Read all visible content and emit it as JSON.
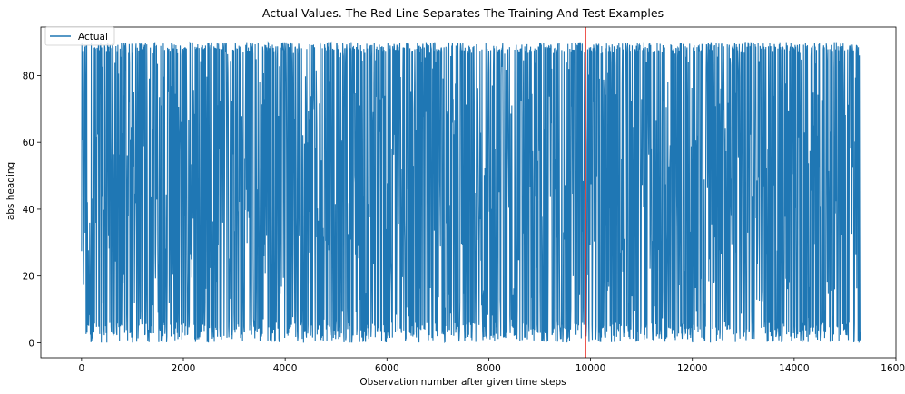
{
  "chart_data": {
    "type": "line",
    "title": "Actual Values. The Red Line Separates The Training And Test Examples",
    "xlabel": "Observation number after given time steps",
    "ylabel": "abs heading",
    "xlim": [
      -800,
      16000
    ],
    "ylim": [
      -4.5,
      94.5
    ],
    "xticks": [
      0,
      2000,
      4000,
      6000,
      8000,
      10000,
      12000,
      14000,
      16000
    ],
    "xtick_labels": [
      "0",
      "2000",
      "4000",
      "6000",
      "8000",
      "10000",
      "12000",
      "14000",
      "16000"
    ],
    "yticks": [
      0,
      20,
      40,
      60,
      80
    ],
    "ytick_labels": [
      "0",
      "20",
      "40",
      "60",
      "80"
    ],
    "grid": false,
    "legend": {
      "position": "top-left"
    },
    "split_line": {
      "x": 9900,
      "color": "#e8231a"
    },
    "series": [
      {
        "name": "Actual",
        "color": "#1f77b4",
        "x_range": [
          0,
          15300
        ],
        "value_range": [
          0,
          90
        ],
        "approx_points": 15300
      }
    ]
  }
}
